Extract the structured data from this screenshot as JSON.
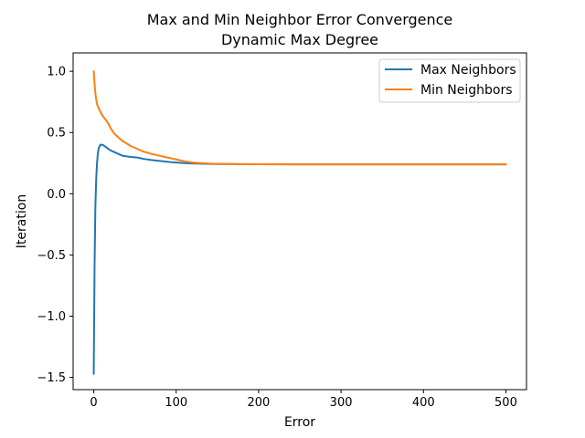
{
  "chart_data": {
    "type": "line",
    "title": [
      "Max and Min Neighbor Error Convergence",
      "Dynamic Max Degree"
    ],
    "xlabel": "Error",
    "ylabel": "Iteration",
    "xlim": [
      -25,
      525
    ],
    "ylim": [
      -1.6,
      1.15
    ],
    "xticks": [
      0,
      100,
      200,
      300,
      400,
      500
    ],
    "xtick_labels": [
      "0",
      "100",
      "200",
      "300",
      "400",
      "500"
    ],
    "yticks": [
      -1.5,
      -1.0,
      -0.5,
      0.0,
      0.5,
      1.0
    ],
    "ytick_labels": [
      "−1.5",
      "−1.0",
      "−0.5",
      "0.0",
      "0.5",
      "1.0"
    ],
    "grid": false,
    "legend_position": "upper right",
    "series": [
      {
        "name": "Max Neighbors",
        "color": "#1f77b4",
        "x": [
          0,
          1,
          2,
          3,
          4,
          5,
          6,
          8,
          10,
          12,
          15,
          20,
          25,
          30,
          35,
          40,
          45,
          50,
          55,
          60,
          70,
          80,
          90,
          100,
          110,
          120,
          130,
          140,
          150,
          175,
          200,
          250,
          300,
          350,
          400,
          450,
          500
        ],
        "y": [
          -1.47,
          -0.6,
          -0.1,
          0.12,
          0.25,
          0.33,
          0.37,
          0.4,
          0.4,
          0.395,
          0.38,
          0.355,
          0.34,
          0.325,
          0.31,
          0.305,
          0.3,
          0.298,
          0.293,
          0.285,
          0.275,
          0.268,
          0.26,
          0.255,
          0.25,
          0.247,
          0.245,
          0.244,
          0.243,
          0.242,
          0.241,
          0.24,
          0.24,
          0.24,
          0.24,
          0.24,
          0.24
        ]
      },
      {
        "name": "Min Neighbors",
        "color": "#ff7f0e",
        "x": [
          0,
          1,
          2,
          3,
          4,
          6,
          8,
          10,
          12,
          15,
          18,
          20,
          25,
          30,
          35,
          40,
          45,
          50,
          55,
          60,
          70,
          80,
          90,
          100,
          110,
          120,
          130,
          140,
          150,
          175,
          200,
          250,
          300,
          350,
          400,
          450,
          500
        ],
        "y": [
          1.0,
          0.9,
          0.82,
          0.77,
          0.73,
          0.7,
          0.67,
          0.645,
          0.625,
          0.6,
          0.57,
          0.54,
          0.49,
          0.46,
          0.43,
          0.41,
          0.39,
          0.375,
          0.36,
          0.345,
          0.325,
          0.31,
          0.295,
          0.28,
          0.265,
          0.255,
          0.25,
          0.246,
          0.244,
          0.242,
          0.241,
          0.24,
          0.24,
          0.24,
          0.24,
          0.24,
          0.24
        ]
      }
    ]
  }
}
